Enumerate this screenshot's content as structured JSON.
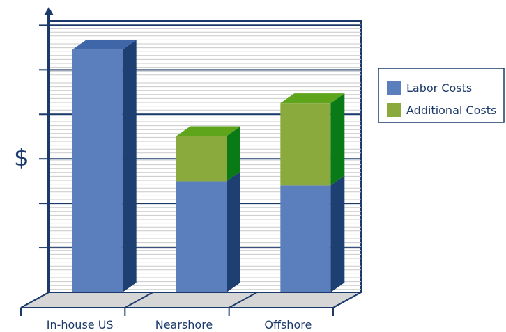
{
  "chart_data": {
    "type": "bar",
    "stacked": true,
    "projection": "3d",
    "categories": [
      "In-house US",
      "Nearshore",
      "Offshore"
    ],
    "series": [
      {
        "name": "Labor Costs",
        "values": [
          5.9,
          2.7,
          2.6
        ]
      },
      {
        "name": "Additional Costs",
        "values": [
          0,
          1.1,
          2.0
        ]
      }
    ],
    "ylim": [
      0,
      6.6
    ],
    "y_major_gridlines": 6,
    "y_minor_gridlines": true,
    "ylabel": "$",
    "xlabel": "",
    "title": "",
    "legend": {
      "position": "right",
      "entries": [
        "Labor Costs",
        "Additional Costs"
      ]
    },
    "colors": {
      "Labor Costs": {
        "front": "#5b7fbc",
        "top": "#3f66a9",
        "side": "#1e3f72"
      },
      "Additional Costs": {
        "front": "#8aaa3e",
        "top": "#5fa51c",
        "side": "#0a7a16"
      },
      "axis": "#1b3a6b",
      "minor_grid": "#c9c9c9",
      "floor": "#d6d6d6"
    }
  }
}
